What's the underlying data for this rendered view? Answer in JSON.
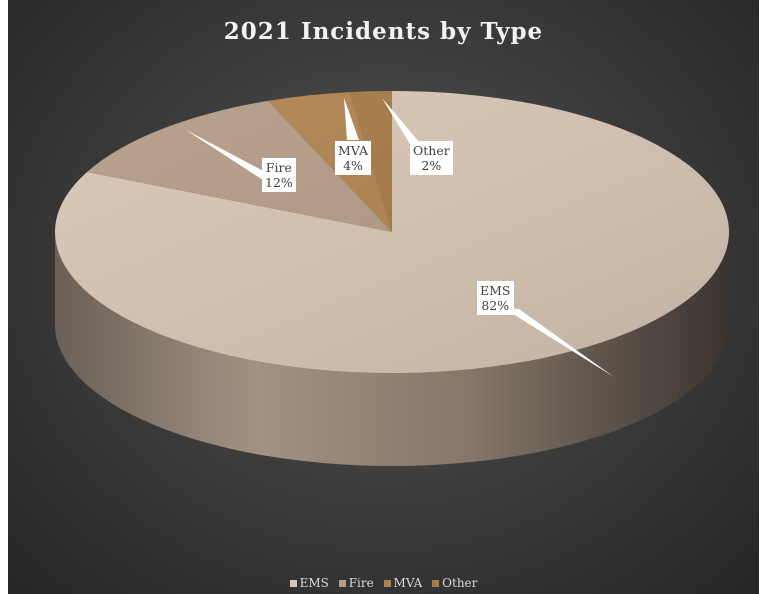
{
  "chart_data": {
    "type": "pie",
    "title": "2021 Incidents by Type",
    "categories": [
      "EMS",
      "Fire",
      "MVA",
      "Other"
    ],
    "values": [
      82,
      12,
      4,
      2
    ],
    "value_labels": [
      "82%",
      "12%",
      "4%",
      "2%"
    ],
    "colors": [
      "#d7c5b4",
      "#b49c86",
      "#b0834f",
      "#a57a45"
    ],
    "legend_position": "bottom",
    "style": "3d-pie"
  }
}
